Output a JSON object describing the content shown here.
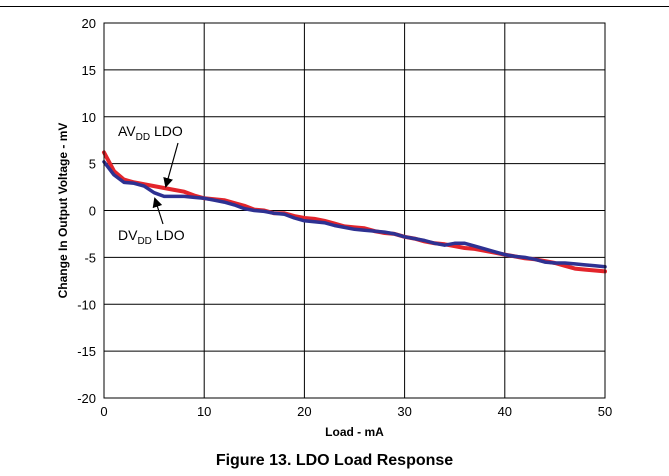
{
  "caption": "Figure 13. LDO Load Response",
  "chart_data": {
    "type": "line",
    "title": "",
    "xlabel": "Load - mA",
    "ylabel": "Change In Output Voltage - mV",
    "xlim": [
      0,
      50
    ],
    "ylim": [
      -20,
      20
    ],
    "xticks": [
      0,
      10,
      20,
      30,
      40,
      50
    ],
    "yticks": [
      -20,
      -15,
      -10,
      -5,
      0,
      5,
      10,
      15,
      20
    ],
    "grid": true,
    "colors": {
      "red": "#e3242b",
      "blue": "#2e3192"
    },
    "series": [
      {
        "color": "#e3242b",
        "x": [
          0,
          1,
          2,
          3,
          4,
          5,
          6,
          7,
          8,
          9,
          10,
          11,
          12,
          13,
          14,
          15,
          16,
          17,
          18,
          19,
          20,
          21,
          22,
          23,
          24,
          25,
          26,
          27,
          28,
          29,
          30,
          31,
          32,
          33,
          34,
          35,
          36,
          37,
          38,
          39,
          40,
          41,
          42,
          43,
          44,
          45,
          46,
          47,
          48,
          49,
          50
        ],
        "values": [
          6.2,
          4.2,
          3.3,
          3.0,
          2.8,
          2.6,
          2.4,
          2.2,
          2.0,
          1.6,
          1.3,
          1.2,
          1.1,
          0.8,
          0.5,
          0.1,
          0.0,
          -0.3,
          -0.3,
          -0.6,
          -0.8,
          -0.9,
          -1.1,
          -1.4,
          -1.7,
          -1.8,
          -1.9,
          -2.2,
          -2.4,
          -2.5,
          -2.8,
          -3.0,
          -3.3,
          -3.5,
          -3.6,
          -3.8,
          -4.0,
          -4.1,
          -4.3,
          -4.5,
          -4.7,
          -4.9,
          -5.1,
          -5.2,
          -5.4,
          -5.6,
          -5.9,
          -6.2,
          -6.3,
          -6.4,
          -6.5
        ]
      },
      {
        "color": "#2e3192",
        "x": [
          0,
          1,
          2,
          3,
          4,
          5,
          6,
          7,
          8,
          9,
          10,
          11,
          12,
          13,
          14,
          15,
          16,
          17,
          18,
          19,
          20,
          21,
          22,
          23,
          24,
          25,
          26,
          27,
          28,
          29,
          30,
          31,
          32,
          33,
          34,
          35,
          36,
          37,
          38,
          39,
          40,
          41,
          42,
          43,
          44,
          45,
          46,
          47,
          48,
          49,
          50
        ],
        "values": [
          5.2,
          3.8,
          3.0,
          2.9,
          2.6,
          1.9,
          1.5,
          1.5,
          1.5,
          1.4,
          1.3,
          1.1,
          0.9,
          0.6,
          0.2,
          0.0,
          -0.1,
          -0.3,
          -0.4,
          -0.8,
          -1.1,
          -1.2,
          -1.3,
          -1.6,
          -1.8,
          -2.0,
          -2.1,
          -2.2,
          -2.3,
          -2.5,
          -2.8,
          -3.0,
          -3.2,
          -3.5,
          -3.7,
          -3.5,
          -3.5,
          -3.8,
          -4.1,
          -4.4,
          -4.7,
          -4.9,
          -5.0,
          -5.2,
          -5.5,
          -5.6,
          -5.6,
          -5.7,
          -5.8,
          -5.9,
          -6.0
        ]
      }
    ],
    "annotations": [
      {
        "base": "AV",
        "sub": "DD",
        "suffix": " LDO"
      },
      {
        "base": "DV",
        "sub": "DD",
        "suffix": " LDO"
      }
    ]
  }
}
